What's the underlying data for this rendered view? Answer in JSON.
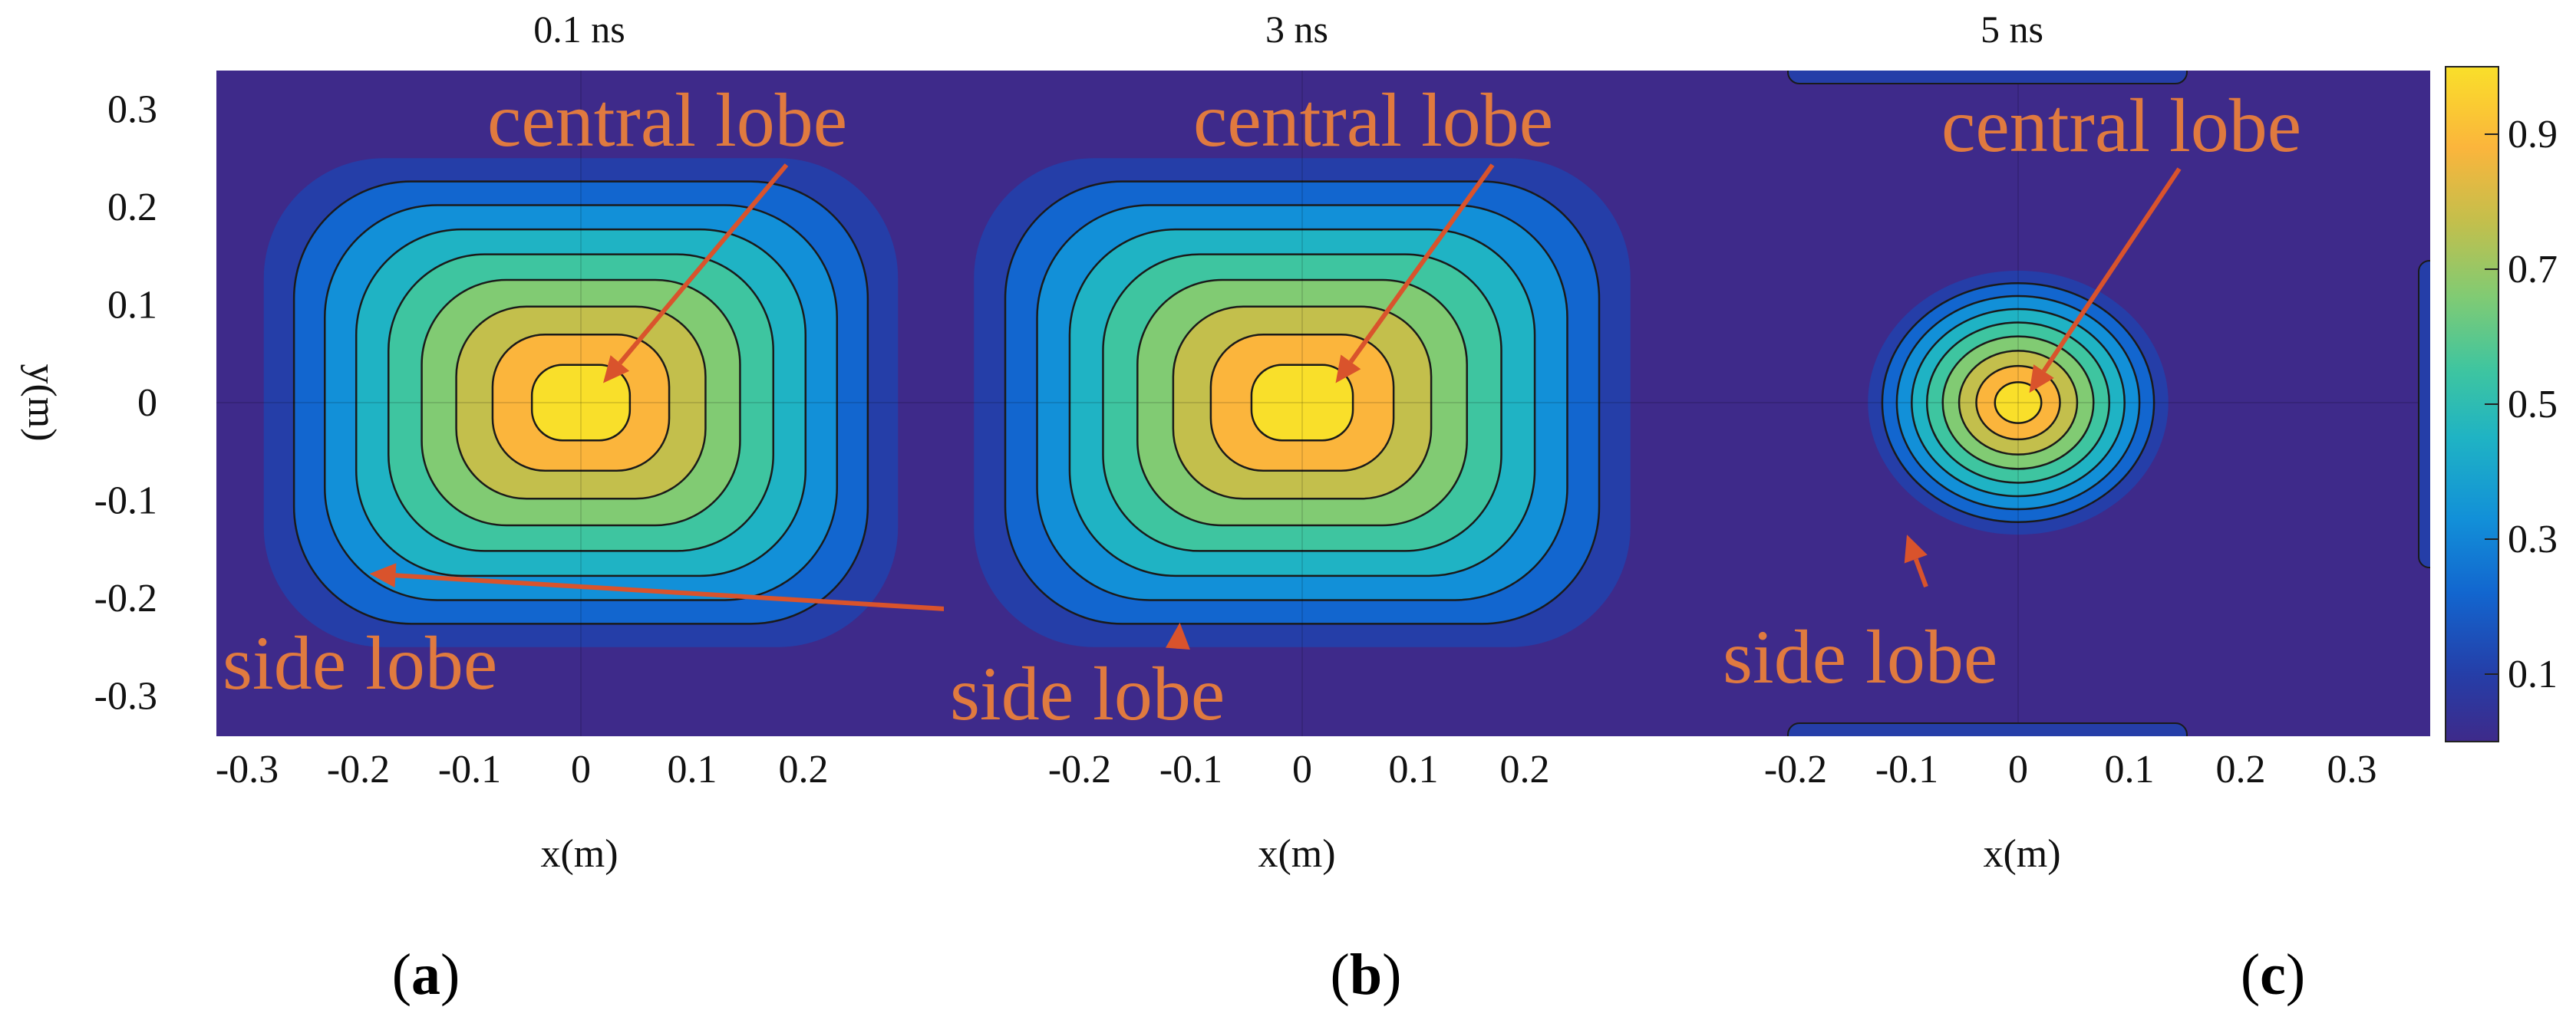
{
  "chart_data": [
    {
      "type": "contour",
      "panel_label": "a",
      "title": "0.1 ns",
      "xlabel": "x(m)",
      "ylabel": "y(m)",
      "xlim": [
        -0.355,
        0.1
      ],
      "ylim": [
        -0.34,
        0.34
      ],
      "xticks": [
        "-0.3",
        "-0.2",
        "-0.1",
        "0",
        "0.1",
        "0.2"
      ],
      "yticks": [
        "0.3",
        "0.2",
        "0.1",
        "0",
        "-0.1",
        "-0.2",
        "-0.3"
      ],
      "colorscale": [
        "#3e2a8a",
        "#253ea8",
        "#1266cf",
        "#1290d8",
        "#1fb3c4",
        "#3ec5a0",
        "#81cb73",
        "#c3bf4c",
        "#fbb53c",
        "#f9df2a"
      ],
      "central_lobe": {
        "x": 0,
        "y": 0,
        "peak": 1.0
      },
      "field_half_width": {
        "x": 0.285,
        "y": 0.25
      },
      "shape": "square",
      "annotations": [
        {
          "text": "central lobe",
          "points_to": {
            "x": 0.02,
            "y": 0.02
          }
        },
        {
          "text": "side lobe",
          "points_to": {
            "x": -0.19,
            "y": -0.175
          }
        }
      ]
    },
    {
      "type": "contour",
      "panel_label": "b",
      "title": "3 ns",
      "xlabel": "x(m)",
      "xlim": [
        -0.35,
        0.1
      ],
      "xticks": [
        "-0.2",
        "-0.1",
        "0",
        "0.1",
        "0.2"
      ],
      "colorscale": [
        "#3e2a8a",
        "#253ea8",
        "#1266cf",
        "#1290d8",
        "#1fb3c4",
        "#3ec5a0",
        "#81cb73",
        "#c3bf4c",
        "#fbb53c",
        "#f9df2a"
      ],
      "central_lobe": {
        "x": 0,
        "y": 0,
        "peak": 1.0
      },
      "field_half_width": {
        "x": 0.295,
        "y": 0.25
      },
      "shape": "square",
      "annotations": [
        {
          "text": "central lobe",
          "points_to": {
            "x": 0.03,
            "y": 0.02
          }
        },
        {
          "text": "side lobe",
          "points_to": {
            "x": -0.11,
            "y": -0.225
          }
        }
      ]
    },
    {
      "type": "contour",
      "panel_label": "c",
      "title": "5 ns",
      "xlabel": "x(m)",
      "xlim": [
        -0.3,
        0.3
      ],
      "xticks": [
        "-0.2",
        "-0.1",
        "0",
        "0.1",
        "0.2",
        "0.3"
      ],
      "colorscale": [
        "#3e2a8a",
        "#253ea8",
        "#1266cf",
        "#1290d8",
        "#1fb3c4",
        "#3ec5a0",
        "#81cb73",
        "#c3bf4c",
        "#fbb53c",
        "#f9df2a"
      ],
      "central_lobe": {
        "x": 0,
        "y": 0,
        "peak": 1.0
      },
      "field_half_width": {
        "x": 0.135,
        "y": 0.135
      },
      "shape": "circle",
      "annotations": [
        {
          "text": "central lobe",
          "points_to": {
            "x": 0.01,
            "y": 0.01
          }
        },
        {
          "text": "side lobe",
          "points_to": {
            "x": -0.1,
            "y": -0.135
          }
        }
      ]
    },
    {
      "type": "colorbar",
      "ticks": [
        "0.9",
        "0.7",
        "0.5",
        "0.3",
        "0.1"
      ],
      "tick_values": [
        0.9,
        0.7,
        0.5,
        0.3,
        0.1
      ],
      "range": [
        0.0,
        1.0
      ]
    }
  ]
}
